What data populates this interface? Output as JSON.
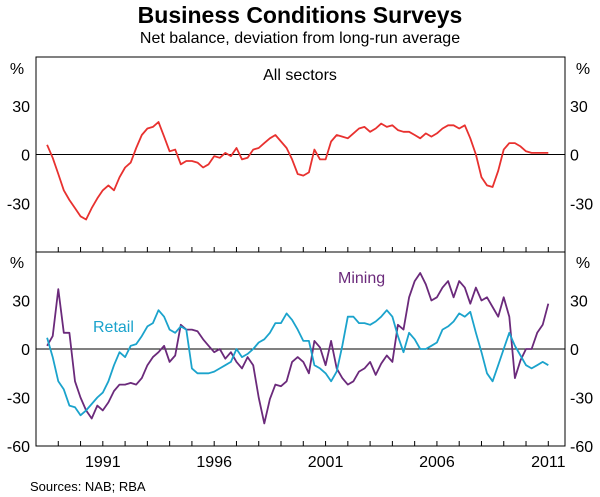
{
  "header": {
    "title": "Business Conditions Surveys",
    "subtitle": "Net balance, deviation from long-run average"
  },
  "footer": {
    "source": "Sources: NAB; RBA"
  },
  "colors": {
    "all_sectors": "#e8312f",
    "mining": "#6b2a7b",
    "retail": "#1ba3cc"
  },
  "chart_data": [
    {
      "type": "line",
      "panel_label": "All sectors",
      "unit_label": "%",
      "ylim": [
        -60,
        60
      ],
      "yticks": [
        30,
        0,
        -30
      ],
      "xlim": [
        1988.0,
        2011.75
      ],
      "series": [
        {
          "name": "All sectors",
          "x": [
            1988.5,
            1988.75,
            1989.0,
            1989.25,
            1989.5,
            1989.75,
            1990.0,
            1990.25,
            1990.5,
            1990.75,
            1991.0,
            1991.25,
            1991.5,
            1991.75,
            1992.0,
            1992.25,
            1992.5,
            1992.75,
            1993.0,
            1993.25,
            1993.5,
            1993.75,
            1994.0,
            1994.25,
            1994.5,
            1994.75,
            1995.0,
            1995.25,
            1995.5,
            1995.75,
            1996.0,
            1996.25,
            1996.5,
            1996.75,
            1997.0,
            1997.25,
            1997.5,
            1997.75,
            1998.0,
            1998.25,
            1998.5,
            1998.75,
            1999.0,
            1999.25,
            1999.5,
            1999.75,
            2000.0,
            2000.25,
            2000.5,
            2000.75,
            2001.0,
            2001.25,
            2001.5,
            2001.75,
            2002.0,
            2002.25,
            2002.5,
            2002.75,
            2003.0,
            2003.25,
            2003.5,
            2003.75,
            2004.0,
            2004.25,
            2004.5,
            2004.75,
            2005.0,
            2005.25,
            2005.5,
            2005.75,
            2006.0,
            2006.25,
            2006.5,
            2006.75,
            2007.0,
            2007.25,
            2007.5,
            2007.75,
            2008.0,
            2008.25,
            2008.5,
            2008.75,
            2009.0,
            2009.25,
            2009.5,
            2009.75,
            2010.0,
            2010.25,
            2010.5,
            2010.75,
            2011.0
          ],
          "values": [
            6,
            -2,
            -12,
            -22,
            -28,
            -33,
            -38,
            -40,
            -33,
            -27,
            -22,
            -19,
            -22,
            -14,
            -8,
            -5,
            4,
            12,
            16,
            17,
            20,
            11,
            2,
            3,
            -6,
            -4,
            -4,
            -5,
            -8,
            -6,
            -1,
            -2,
            1,
            -1,
            4,
            -3,
            -2,
            3,
            4,
            7,
            10,
            12,
            8,
            4,
            -3,
            -12,
            -13,
            -11,
            3,
            -3,
            -3,
            8,
            12,
            11,
            10,
            13,
            16,
            17,
            14,
            16,
            19,
            17,
            18,
            15,
            14,
            14,
            12,
            10,
            13,
            11,
            13,
            16,
            18,
            18,
            16,
            18,
            10,
            0,
            -14,
            -19,
            -20,
            -10,
            3,
            7,
            7,
            5,
            2,
            1,
            1,
            1,
            1
          ]
        }
      ]
    },
    {
      "type": "line",
      "unit_label": "%",
      "ylim": [
        -60,
        60
      ],
      "yticks": [
        30,
        0,
        -30,
        -60
      ],
      "xlim": [
        1988.0,
        2011.75
      ],
      "xticks": [
        1991,
        1996,
        2001,
        2006,
        2011
      ],
      "series": [
        {
          "name": "Mining",
          "x": [
            1988.5,
            1988.75,
            1989.0,
            1989.25,
            1989.5,
            1989.75,
            1990.0,
            1990.25,
            1990.5,
            1990.75,
            1991.0,
            1991.25,
            1991.5,
            1991.75,
            1992.0,
            1992.25,
            1992.5,
            1992.75,
            1993.0,
            1993.25,
            1993.5,
            1993.75,
            1994.0,
            1994.25,
            1994.5,
            1994.75,
            1995.0,
            1995.25,
            1995.5,
            1995.75,
            1996.0,
            1996.25,
            1996.5,
            1996.75,
            1997.0,
            1997.25,
            1997.5,
            1997.75,
            1998.0,
            1998.25,
            1998.5,
            1998.75,
            1999.0,
            1999.25,
            1999.5,
            1999.75,
            2000.0,
            2000.25,
            2000.5,
            2000.75,
            2001.0,
            2001.25,
            2001.5,
            2001.75,
            2002.0,
            2002.25,
            2002.5,
            2002.75,
            2003.0,
            2003.25,
            2003.5,
            2003.75,
            2004.0,
            2004.25,
            2004.5,
            2004.75,
            2005.0,
            2005.25,
            2005.5,
            2005.75,
            2006.0,
            2006.25,
            2006.5,
            2006.75,
            2007.0,
            2007.25,
            2007.5,
            2007.75,
            2008.0,
            2008.25,
            2008.5,
            2008.75,
            2009.0,
            2009.25,
            2009.5,
            2009.75,
            2010.0,
            2010.25,
            2010.5,
            2010.75,
            2011.0
          ],
          "values": [
            2,
            8,
            37,
            10,
            10,
            -20,
            -30,
            -38,
            -43,
            -35,
            -38,
            -33,
            -26,
            -22,
            -22,
            -21,
            -22,
            -18,
            -10,
            -5,
            -2,
            2,
            -8,
            -4,
            15,
            12,
            12,
            11,
            6,
            2,
            -2,
            0,
            -6,
            -2,
            -8,
            -12,
            -5,
            -10,
            -30,
            -46,
            -31,
            -22,
            -23,
            -20,
            -8,
            -5,
            -8,
            -15,
            5,
            1,
            -10,
            5,
            -12,
            -18,
            -22,
            -20,
            -14,
            -12,
            -8,
            -16,
            -9,
            -4,
            -8,
            15,
            12,
            32,
            42,
            47,
            40,
            30,
            32,
            38,
            42,
            32,
            42,
            38,
            28,
            38,
            30,
            32,
            26,
            20,
            32,
            20,
            -18,
            -7,
            0,
            0,
            10,
            15,
            28
          ]
        },
        {
          "name": "Retail",
          "x": [
            1988.5,
            1988.75,
            1989.0,
            1989.25,
            1989.5,
            1989.75,
            1990.0,
            1990.25,
            1990.5,
            1990.75,
            1991.0,
            1991.25,
            1991.5,
            1991.75,
            1992.0,
            1992.25,
            1992.5,
            1992.75,
            1993.0,
            1993.25,
            1993.5,
            1993.75,
            1994.0,
            1994.25,
            1994.5,
            1994.75,
            1995.0,
            1995.25,
            1995.5,
            1995.75,
            1996.0,
            1996.25,
            1996.5,
            1996.75,
            1997.0,
            1997.25,
            1997.5,
            1997.75,
            1998.0,
            1998.25,
            1998.5,
            1998.75,
            1999.0,
            1999.25,
            1999.5,
            1999.75,
            2000.0,
            2000.25,
            2000.5,
            2000.75,
            2001.0,
            2001.25,
            2001.5,
            2001.75,
            2002.0,
            2002.25,
            2002.5,
            2002.75,
            2003.0,
            2003.25,
            2003.5,
            2003.75,
            2004.0,
            2004.25,
            2004.5,
            2004.75,
            2005.0,
            2005.25,
            2005.5,
            2005.75,
            2006.0,
            2006.25,
            2006.5,
            2006.75,
            2007.0,
            2007.25,
            2007.5,
            2007.75,
            2008.0,
            2008.25,
            2008.5,
            2008.75,
            2009.0,
            2009.25,
            2009.5,
            2009.75,
            2010.0,
            2010.25,
            2010.5,
            2010.75,
            2011.0
          ],
          "values": [
            7,
            -5,
            -20,
            -25,
            -35,
            -36,
            -41,
            -38,
            -34,
            -30,
            -27,
            -20,
            -10,
            -2,
            -5,
            2,
            3,
            8,
            14,
            16,
            24,
            20,
            12,
            10,
            14,
            12,
            -12,
            -15,
            -15,
            -15,
            -14,
            -12,
            -10,
            -8,
            0,
            -5,
            -3,
            0,
            4,
            6,
            10,
            16,
            16,
            22,
            18,
            12,
            5,
            5,
            -10,
            -12,
            -15,
            -20,
            -14,
            2,
            20,
            20,
            16,
            16,
            15,
            17,
            20,
            24,
            20,
            8,
            -2,
            10,
            6,
            0,
            0,
            2,
            4,
            12,
            14,
            17,
            22,
            20,
            23,
            10,
            -2,
            -15,
            -20,
            -10,
            0,
            10,
            2,
            -4,
            -10,
            -12,
            -10,
            -8,
            -10
          ]
        }
      ],
      "labels": {
        "mining": "Mining",
        "retail": "Retail"
      }
    }
  ]
}
